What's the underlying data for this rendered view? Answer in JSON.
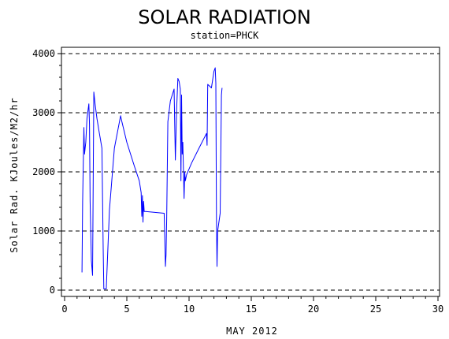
{
  "chart_data": {
    "type": "line",
    "title": "SOLAR RADIATION",
    "subtitle": "station=PHCK",
    "xlabel": "MAY 2012",
    "ylabel": "Solar Rad. KJoules/M2/hr",
    "xlim": [
      0,
      30
    ],
    "ylim": [
      0,
      4000
    ],
    "x_ticks": [
      0,
      5,
      10,
      15,
      20,
      25,
      30
    ],
    "y_ticks": [
      0,
      1000,
      2000,
      3000,
      4000
    ],
    "grid": "horizontal-dashed",
    "series": [
      {
        "color": "#0000ff",
        "x": [
          1.4,
          1.45,
          1.55,
          1.6,
          1.7,
          1.8,
          1.95,
          2.0,
          2.05,
          2.15,
          2.25,
          2.35,
          2.45,
          2.6,
          2.8,
          3.0,
          3.1,
          3.15,
          3.25,
          3.35,
          3.6,
          4.0,
          4.5,
          4.6,
          5.0,
          5.6,
          6.0,
          6.15,
          6.2,
          6.25,
          6.3,
          6.35,
          6.4,
          6.5,
          7.0,
          8.0,
          8.1,
          8.15,
          8.2,
          8.3,
          8.5,
          8.8,
          8.9,
          9.0,
          9.1,
          9.2,
          9.3,
          9.35,
          9.4,
          9.45,
          9.5,
          9.6,
          9.65,
          9.7,
          9.8,
          10.2,
          10.8,
          11.4,
          11.45,
          11.5,
          11.8,
          12.0,
          12.1,
          12.15,
          12.2,
          12.25,
          12.3,
          12.5,
          12.6,
          12.65
        ],
        "y": [
          300,
          1500,
          2750,
          2300,
          2500,
          2900,
          3150,
          2800,
          1500,
          500,
          250,
          3350,
          3150,
          2900,
          2650,
          2400,
          700,
          20,
          20,
          20,
          1350,
          2400,
          2950,
          2850,
          2500,
          2100,
          1850,
          1650,
          1250,
          1600,
          1150,
          1500,
          1330,
          1330,
          1320,
          1300,
          400,
          600,
          1200,
          2850,
          3200,
          3400,
          2200,
          3050,
          3580,
          3530,
          3400,
          1850,
          3300,
          2300,
          2500,
          1550,
          2000,
          1850,
          1950,
          2150,
          2400,
          2650,
          2450,
          3480,
          3420,
          3700,
          3760,
          3500,
          1200,
          400,
          1000,
          1300,
          3300,
          3420
        ]
      }
    ]
  }
}
